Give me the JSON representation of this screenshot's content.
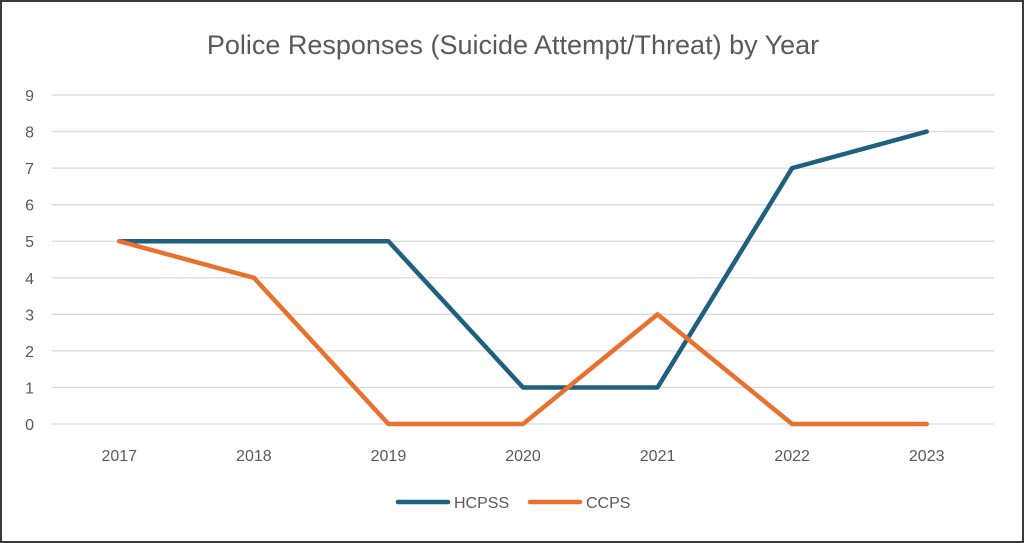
{
  "chart_data": {
    "type": "line",
    "title": "Police Responses (Suicide Attempt/Threat) by Year",
    "xlabel": "",
    "ylabel": "",
    "categories": [
      "2017",
      "2018",
      "2019",
      "2020",
      "2021",
      "2022",
      "2023"
    ],
    "ylim": [
      0,
      9
    ],
    "yticks": [
      "0",
      "1",
      "2",
      "3",
      "4",
      "5",
      "6",
      "7",
      "8",
      "9"
    ],
    "grid": true,
    "legend_position": "bottom",
    "series": [
      {
        "name": "HCPSS",
        "color": "#1f5f7f",
        "values": [
          5,
          5,
          5,
          1,
          1,
          7,
          8
        ]
      },
      {
        "name": "CCPS",
        "color": "#e8712e",
        "values": [
          5,
          4,
          0,
          0,
          3,
          0,
          0
        ]
      }
    ]
  }
}
